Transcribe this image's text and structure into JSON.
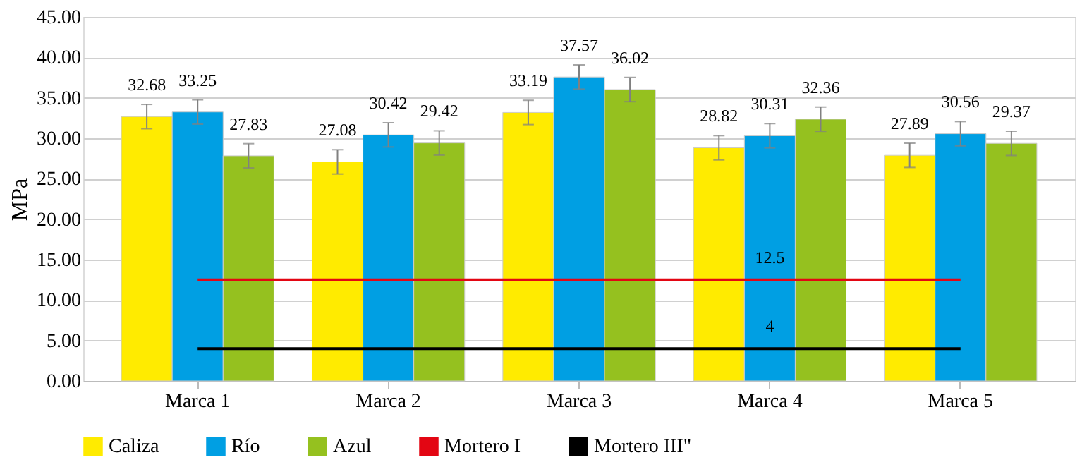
{
  "chart_data": {
    "type": "bar",
    "ylabel": "MPa",
    "categories": [
      "Marca 1",
      "Marca 2",
      "Marca 3",
      "Marca 4",
      "Marca 5"
    ],
    "series": [
      {
        "name": "Caliza",
        "color": "#ffeb00",
        "values": [
          32.68,
          27.08,
          33.19,
          28.82,
          27.89
        ],
        "errors": [
          1.5,
          1.5,
          1.5,
          1.5,
          1.5
        ]
      },
      {
        "name": "Río",
        "color": "#009fe3",
        "values": [
          33.25,
          30.42,
          37.57,
          30.31,
          30.56
        ],
        "errors": [
          1.5,
          1.5,
          1.5,
          1.5,
          1.5
        ]
      },
      {
        "name": "Azul",
        "color": "#95c11f",
        "values": [
          27.83,
          29.42,
          36.02,
          32.36,
          29.37
        ],
        "errors": [
          1.5,
          1.5,
          1.5,
          1.5,
          1.5
        ]
      },
      {
        "name": "Mortero I",
        "type": "line",
        "color": "#e30613",
        "values": [
          12.5,
          12.5,
          12.5,
          12.5,
          12.5
        ],
        "value_labels": [
          null,
          null,
          null,
          "12.5",
          null
        ]
      },
      {
        "name": "Mortero III\"",
        "type": "line",
        "color": "#000000",
        "values": [
          4,
          4,
          4,
          4,
          4
        ],
        "value_labels": [
          null,
          null,
          null,
          "4",
          null
        ]
      }
    ],
    "ylim": [
      0,
      45
    ],
    "yticks": [
      {
        "value": 0,
        "label": "0.00"
      },
      {
        "value": 5,
        "label": "5.00"
      },
      {
        "value": 10,
        "label": "10.00"
      },
      {
        "value": 15,
        "label": "15.00"
      },
      {
        "value": 20,
        "label": "20.00"
      },
      {
        "value": 25,
        "label": "25.00"
      },
      {
        "value": 30,
        "label": "30.00"
      },
      {
        "value": 35,
        "label": "35.00"
      },
      {
        "value": 40,
        "label": "40.00"
      },
      {
        "value": 45,
        "label": "45.00"
      }
    ],
    "data_labels": true,
    "grid": "y",
    "legend": "bottom"
  }
}
